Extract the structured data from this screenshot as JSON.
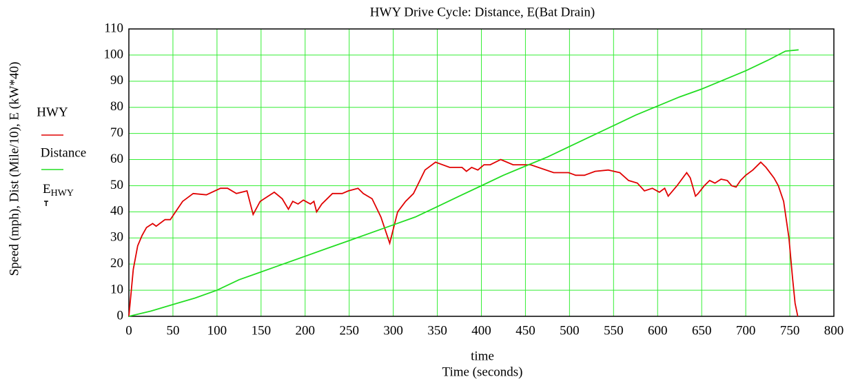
{
  "chart_data": {
    "type": "line",
    "title": "HWY Drive Cycle: Distance, E(Bat Drain)",
    "y_label": "Speed (mph), Dist (Mile/10), E (kW*40)",
    "x_label": "time",
    "x_label_2": "Time (seconds)",
    "xlim": [
      0,
      800
    ],
    "xticks": [
      0,
      50,
      100,
      150,
      200,
      250,
      300,
      350,
      400,
      450,
      500,
      550,
      600,
      650,
      700,
      750,
      800
    ],
    "ylim": [
      0,
      110
    ],
    "yticks": [
      0,
      10,
      20,
      30,
      40,
      50,
      60,
      70,
      80,
      90,
      100,
      110
    ],
    "grid": true,
    "grid_color": "#33ee33",
    "series": [
      {
        "name": "HWY",
        "color": "#e00000",
        "x": [
          0,
          5,
          10,
          15,
          20,
          27,
          31,
          41,
          47,
          61,
          73,
          88,
          104,
          112,
          122,
          134,
          141,
          149,
          165,
          174,
          181,
          186,
          192,
          198,
          206,
          210,
          213,
          219,
          231,
          242,
          249,
          260,
          266,
          276,
          286,
          296,
          305,
          314,
          323,
          336,
          348,
          364,
          378,
          383,
          389,
          396,
          403,
          410,
          422,
          436,
          456,
          482,
          499,
          507,
          517,
          529,
          544,
          557,
          567,
          577,
          585,
          594,
          602,
          608,
          612,
          622,
          633,
          637,
          643,
          646,
          653,
          659,
          665,
          672,
          679,
          684,
          689,
          694,
          700,
          708,
          717,
          723,
          732,
          737,
          743,
          749,
          753,
          756,
          759
        ],
        "values": [
          0,
          18,
          27,
          31,
          34,
          35.5,
          34.5,
          37,
          37,
          44,
          47,
          46.5,
          49,
          49,
          47,
          48,
          39,
          44,
          47.5,
          45,
          41,
          44,
          43,
          44.5,
          43,
          44,
          40,
          43,
          47,
          47,
          48,
          49,
          47,
          45,
          38,
          28,
          40,
          44,
          47,
          56,
          59,
          57,
          57,
          55.5,
          57,
          56,
          58,
          58,
          60,
          58,
          58,
          55,
          55,
          54,
          54,
          55.5,
          56,
          55,
          52,
          51,
          48,
          49,
          47.5,
          49,
          46,
          50,
          55,
          53,
          46,
          47,
          50,
          52,
          51,
          52.5,
          52,
          50,
          49.5,
          52,
          54,
          56,
          59,
          57,
          53,
          50,
          44,
          30,
          15,
          5,
          0
        ]
      },
      {
        "name": "Distance",
        "color": "#22dd22",
        "x": [
          0,
          25,
          50,
          75,
          100,
          125,
          150,
          175,
          200,
          225,
          250,
          275,
          300,
          325,
          350,
          375,
          400,
          425,
          450,
          475,
          500,
          525,
          550,
          575,
          600,
          625,
          650,
          675,
          700,
          725,
          745,
          760
        ],
        "values": [
          0,
          2,
          4.5,
          7,
          10,
          14,
          17,
          20,
          23,
          26,
          29,
          32,
          35,
          38,
          42,
          46,
          50,
          54,
          57.5,
          61,
          65,
          69,
          73,
          77,
          80.5,
          84,
          87,
          90.5,
          94,
          98,
          101.5,
          102
        ]
      }
    ],
    "legend_extra": {
      "name": "E",
      "subscript": "HWY"
    }
  }
}
